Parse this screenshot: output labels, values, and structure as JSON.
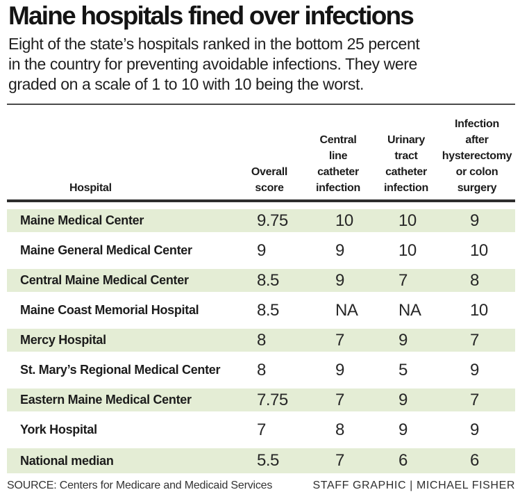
{
  "header": {
    "title": "Maine hospitals fined over infections",
    "subtitle_lines": [
      "Eight of the state’s hospitals ranked in the bottom 25 percent",
      "in the country for preventing avoidable infections. They were",
      "graded on a scale of 1 to 10 with 10 being the worst."
    ]
  },
  "table": {
    "header_cells": {
      "hospital": "Hospital",
      "overall": "Overall\nscore",
      "central": "Central\nline\ncatheter\ninfection",
      "urinary": "Urinary\ntract\ncatheter\ninfection",
      "infection": "Infection\nafter\nhysterectomy\nor colon\nsurgery"
    },
    "rows": [
      {
        "hospital": "Maine Medical Center",
        "overall": "9.75",
        "central": "10",
        "urinary": "10",
        "infection": "9",
        "highlight": true
      },
      {
        "hospital": "Maine General Medical Center",
        "overall": "9",
        "central": "9",
        "urinary": "10",
        "infection": "10",
        "highlight": false
      },
      {
        "hospital": "Central Maine Medical Center",
        "overall": "8.5",
        "central": "9",
        "urinary": "7",
        "infection": "8",
        "highlight": true
      },
      {
        "hospital": "Maine Coast Memorial Hospital",
        "overall": "8.5",
        "central": "NA",
        "urinary": "NA",
        "infection": "10",
        "highlight": false
      },
      {
        "hospital": "Mercy Hospital",
        "overall": "8",
        "central": "7",
        "urinary": "9",
        "infection": "7",
        "highlight": true
      },
      {
        "hospital": "St. Mary’s Regional Medical Center",
        "overall": "8",
        "central": "9",
        "urinary": "5",
        "infection": "9",
        "highlight": false
      },
      {
        "hospital": "Eastern Maine Medical Center",
        "overall": "7.75",
        "central": "7",
        "urinary": "9",
        "infection": "7",
        "highlight": true
      },
      {
        "hospital": "York Hospital",
        "overall": "7",
        "central": "8",
        "urinary": "9",
        "infection": "9",
        "highlight": false
      },
      {
        "hospital": "National median",
        "overall": "5.5",
        "central": "7",
        "urinary": "6",
        "infection": "6",
        "highlight": true
      }
    ]
  },
  "footer": {
    "source": "SOURCE: Centers for Medicare and Medicaid Services",
    "credit": "STAFF GRAPHIC | MICHAEL FISHER"
  },
  "colors": {
    "highlight_row": "#e4edd5",
    "rule": "#2e2e2e",
    "text": "#1b1b1b"
  },
  "chart_data": {
    "type": "table",
    "title": "Maine hospitals fined over infections",
    "subtitle": "Eight of the state’s hospitals ranked in the bottom 25 percent in the country for preventing avoidable infections. They were graded on a scale of 1 to 10 with 10 being the worst.",
    "scale": {
      "min": 1,
      "max": 10,
      "note": "10 is the worst"
    },
    "columns": [
      "Hospital",
      "Overall score",
      "Central line catheter infection",
      "Urinary tract catheter infection",
      "Infection after hysterectomy or colon surgery"
    ],
    "rows": [
      [
        "Maine Medical Center",
        9.75,
        10,
        10,
        9
      ],
      [
        "Maine General Medical Center",
        9,
        9,
        10,
        10
      ],
      [
        "Central Maine Medical Center",
        8.5,
        9,
        7,
        8
      ],
      [
        "Maine Coast Memorial Hospital",
        8.5,
        "NA",
        "NA",
        10
      ],
      [
        "Mercy Hospital",
        8,
        7,
        9,
        7
      ],
      [
        "St. Mary’s Regional Medical Center",
        8,
        9,
        5,
        9
      ],
      [
        "Eastern Maine Medical Center",
        7.75,
        7,
        9,
        7
      ],
      [
        "York Hospital",
        7,
        8,
        9,
        9
      ],
      [
        "National median",
        5.5,
        7,
        6,
        6
      ]
    ],
    "source": "Centers for Medicare and Medicaid Services",
    "credit": "STAFF GRAPHIC | MICHAEL FISHER"
  }
}
